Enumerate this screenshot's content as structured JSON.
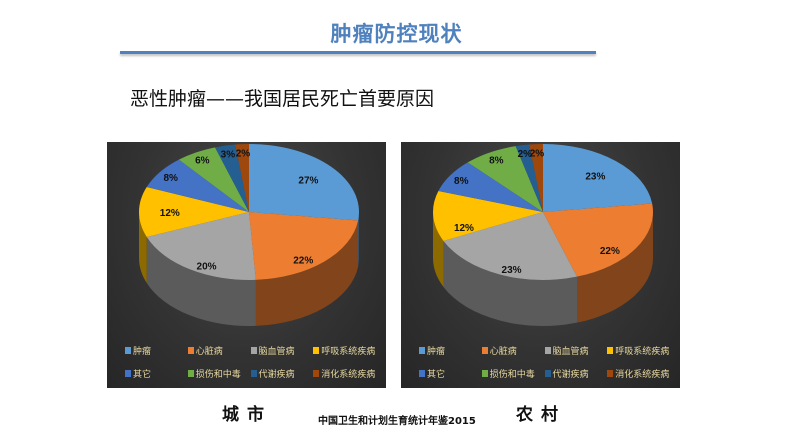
{
  "header": {
    "title": "肿瘤防控现状",
    "subtitle": "恶性肿瘤——我国居民死亡首要原因"
  },
  "colors": {
    "title": "#4f81bd",
    "panel_bg": "#333333",
    "legend_text": "#e8d9a0"
  },
  "legend": [
    {
      "label": "肿瘤",
      "color": "#5b9bd5"
    },
    {
      "label": "心脏病",
      "color": "#ed7d31"
    },
    {
      "label": "脑血管病",
      "color": "#a5a5a5"
    },
    {
      "label": "呼吸系统疾病",
      "color": "#ffc000"
    },
    {
      "label": "其它",
      "color": "#4472c4"
    },
    {
      "label": "损伤和中毒",
      "color": "#70ad47"
    },
    {
      "label": "代谢疾病",
      "color": "#255e91"
    },
    {
      "label": "消化系统疾病",
      "color": "#9e480e"
    }
  ],
  "captions": {
    "urban": "城市",
    "rural": "农村",
    "source": "中国卫生和计划生育统计年鉴2015"
  },
  "chart_data": [
    {
      "type": "pie",
      "title": "城市",
      "categories": [
        "肿瘤",
        "心脏病",
        "脑血管病",
        "呼吸系统疾病",
        "其它",
        "损伤和中毒",
        "代谢疾病",
        "消化系统疾病"
      ],
      "values": [
        27,
        22,
        20,
        12,
        8,
        6,
        3,
        2
      ],
      "labels": [
        "27%",
        "22%",
        "20%",
        "12%",
        "8%",
        "6%",
        "3%",
        "2%"
      ],
      "style": "3d",
      "legend_position": "bottom"
    },
    {
      "type": "pie",
      "title": "农村",
      "categories": [
        "肿瘤",
        "心脏病",
        "脑血管病",
        "呼吸系统疾病",
        "其它",
        "损伤和中毒",
        "代谢疾病",
        "消化系统疾病"
      ],
      "values": [
        23,
        22,
        23,
        12,
        8,
        8,
        2,
        2
      ],
      "labels": [
        "23%",
        "22%",
        "23%",
        "12%",
        "8%",
        "8%",
        "2%",
        "2%"
      ],
      "style": "3d",
      "legend_position": "bottom"
    }
  ]
}
